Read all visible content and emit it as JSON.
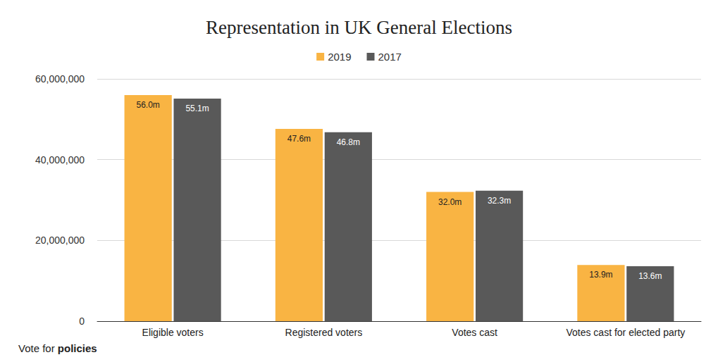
{
  "chart_data": {
    "type": "bar",
    "title": "Representation in UK General Elections",
    "categories": [
      "Eligible voters",
      "Registered voters",
      "Votes cast",
      "Votes cast for elected party"
    ],
    "series": [
      {
        "name": "2019",
        "color": "#f9b443",
        "values": [
          56000000,
          47600000,
          32000000,
          13900000
        ],
        "value_labels": [
          "56.0m",
          "47.6m",
          "32.0m",
          "13.9m"
        ]
      },
      {
        "name": "2017",
        "color": "#595959",
        "values": [
          55100000,
          46800000,
          32300000,
          13600000
        ],
        "value_labels": [
          "55.1m",
          "46.8m",
          "32.3m",
          "13.6m"
        ]
      }
    ],
    "ylim": [
      0,
      60000000
    ],
    "yticks": [
      0,
      {
        "value": 20000000,
        "label": "20,000,000"
      },
      {
        "value": 40000000,
        "label": "40,000,000"
      },
      {
        "value": 60000000,
        "label": "60,000,000"
      }
    ],
    "grid": true,
    "legend": "top",
    "data_labels": true,
    "annotation": "Vote for policies"
  }
}
